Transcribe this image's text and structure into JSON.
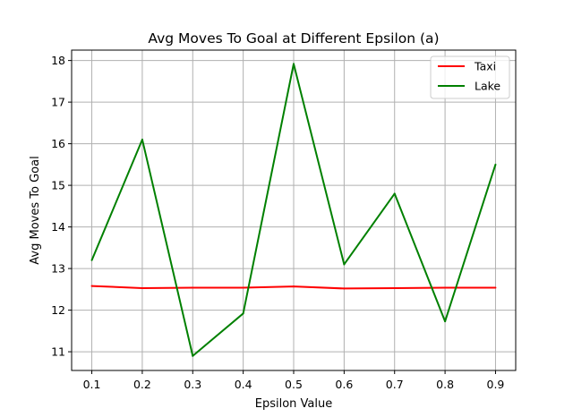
{
  "chart_data": {
    "type": "line",
    "title": "Avg Moves To Goal at Different Epsilon (a)",
    "xlabel": "Epsilon Value",
    "ylabel": "Avg Moves To Goal",
    "x": [
      0.1,
      0.2,
      0.3,
      0.4,
      0.5,
      0.6,
      0.7,
      0.8,
      0.9
    ],
    "x_ticks": [
      "0.1",
      "0.2",
      "0.3",
      "0.4",
      "0.5",
      "0.6",
      "0.7",
      "0.8",
      "0.9"
    ],
    "y_ticks": [
      "11",
      "12",
      "13",
      "14",
      "15",
      "16",
      "17",
      "18"
    ],
    "xlim": [
      0.06,
      0.94
    ],
    "ylim": [
      10.55,
      18.25
    ],
    "grid": true,
    "legend_position": "top-right",
    "series": [
      {
        "name": "Taxi",
        "color": "#ff0000",
        "values": [
          12.58,
          12.53,
          12.54,
          12.54,
          12.57,
          12.52,
          12.53,
          12.54,
          12.54
        ]
      },
      {
        "name": "Lake",
        "color": "#008000",
        "values": [
          13.2,
          16.1,
          10.9,
          11.92,
          17.92,
          13.1,
          14.8,
          11.73,
          15.5
        ]
      }
    ]
  }
}
